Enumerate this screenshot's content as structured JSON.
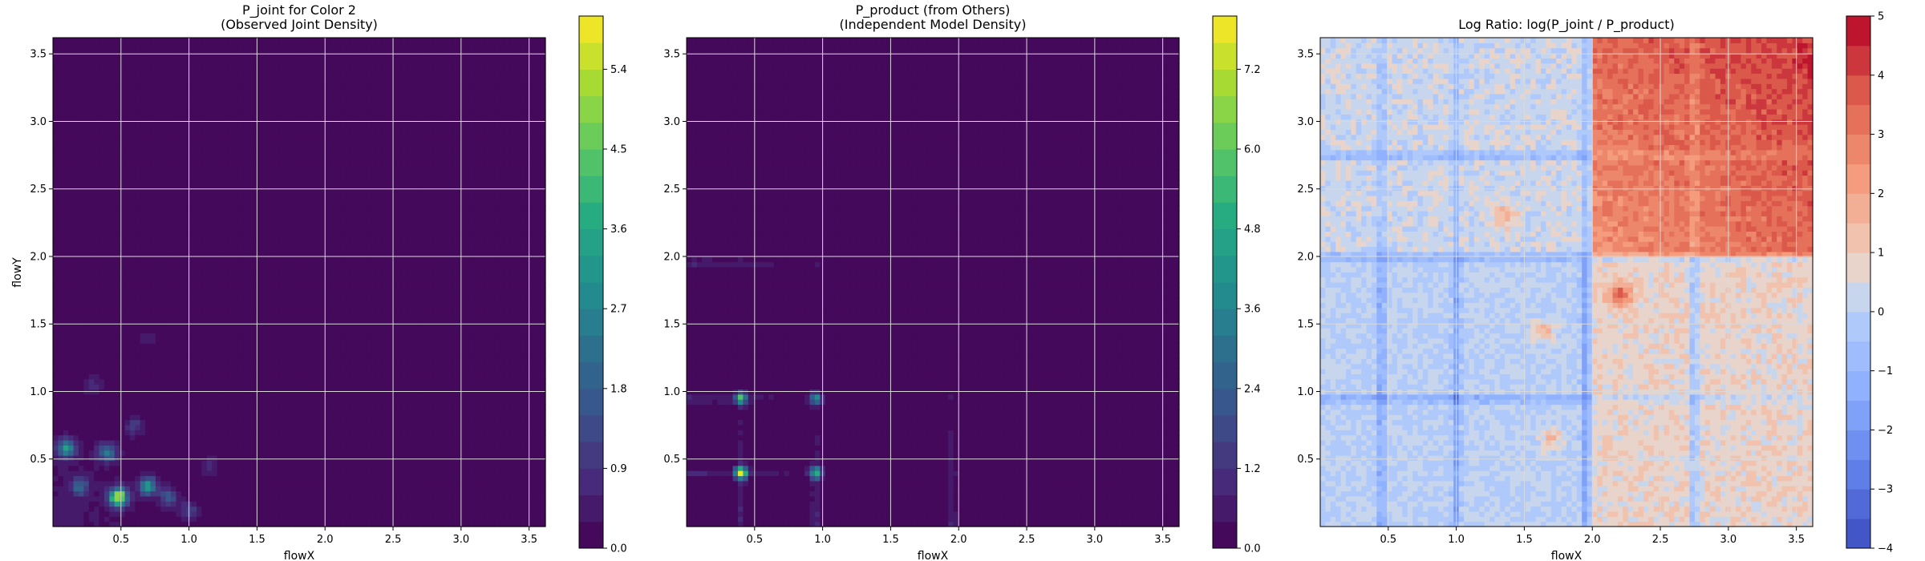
{
  "chart_data": [
    {
      "type": "heatmap",
      "title_lines": [
        "P_joint for Color 2",
        "(Observed Joint Density)"
      ],
      "xlabel": "flowX",
      "ylabel": "flowY",
      "xlim": [
        0,
        3.62
      ],
      "ylim": [
        0,
        3.62
      ],
      "xticks": [
        0.5,
        1.0,
        1.5,
        2.0,
        2.5,
        3.0,
        3.5
      ],
      "yticks": [
        0.5,
        1.0,
        1.5,
        2.0,
        2.5,
        3.0,
        3.5
      ],
      "xtick_labels": [
        "0.5",
        "1.0",
        "1.5",
        "2.0",
        "2.5",
        "3.0",
        "3.5"
      ],
      "ytick_labels": [
        "0.5",
        "1.0",
        "1.5",
        "2.0",
        "2.5",
        "3.0",
        "3.5"
      ],
      "grid": true,
      "colormap": "viridis",
      "colorbar": {
        "range": [
          0,
          6.0
        ],
        "ticks": [
          0.0,
          0.9,
          1.8,
          2.7,
          3.6,
          4.5,
          5.4
        ],
        "tick_labels": [
          "0.0",
          "0.9",
          "1.8",
          "2.7",
          "3.6",
          "4.5",
          "5.4"
        ],
        "levels": 20
      },
      "peaks": [
        {
          "x": 0.48,
          "y": 0.22,
          "value": 5.6
        },
        {
          "x": 0.1,
          "y": 0.58,
          "value": 3.0
        },
        {
          "x": 0.7,
          "y": 0.3,
          "value": 3.0
        },
        {
          "x": 0.4,
          "y": 0.55,
          "value": 2.4
        },
        {
          "x": 0.2,
          "y": 0.3,
          "value": 1.8
        },
        {
          "x": 0.85,
          "y": 0.22,
          "value": 1.6
        },
        {
          "x": 1.0,
          "y": 0.12,
          "value": 1.2
        },
        {
          "x": 0.6,
          "y": 0.75,
          "value": 1.0
        },
        {
          "x": 1.15,
          "y": 0.45,
          "value": 0.8
        },
        {
          "x": 0.3,
          "y": 1.05,
          "value": 0.7
        },
        {
          "x": 0.7,
          "y": 1.4,
          "value": 0.5
        }
      ]
    },
    {
      "type": "heatmap",
      "title_lines": [
        "P_product (from Others)",
        "(Independent Model Density)"
      ],
      "xlabel": "flowX",
      "ylabel": "",
      "xlim": [
        0,
        3.62
      ],
      "ylim": [
        0,
        3.62
      ],
      "xticks": [
        0.5,
        1.0,
        1.5,
        2.0,
        2.5,
        3.0,
        3.5
      ],
      "yticks": [
        0.5,
        1.0,
        1.5,
        2.0,
        2.5,
        3.0,
        3.5
      ],
      "xtick_labels": [
        "0.5",
        "1.0",
        "1.5",
        "2.0",
        "2.5",
        "3.0",
        "3.5"
      ],
      "ytick_labels": [
        "0.5",
        "1.0",
        "1.5",
        "2.0",
        "2.5",
        "3.0",
        "3.5"
      ],
      "grid": true,
      "colormap": "viridis",
      "colorbar": {
        "range": [
          0,
          8.0
        ],
        "ticks": [
          0.0,
          1.2,
          2.4,
          3.6,
          4.8,
          6.0,
          7.2
        ],
        "tick_labels": [
          "0.0",
          "1.2",
          "2.4",
          "3.6",
          "4.8",
          "6.0",
          "7.2"
        ],
        "levels": 20
      },
      "marginal_x_peaks": [
        0.4,
        0.95,
        1.95
      ],
      "marginal_y_peaks": [
        0.4,
        0.95,
        1.95
      ],
      "peaks": [
        {
          "x": 0.4,
          "y": 0.4,
          "value": 7.6
        },
        {
          "x": 0.95,
          "y": 0.4,
          "value": 4.8
        },
        {
          "x": 0.4,
          "y": 0.95,
          "value": 4.8
        },
        {
          "x": 0.95,
          "y": 0.95,
          "value": 3.6
        }
      ]
    },
    {
      "type": "heatmap",
      "title": "Log Ratio: log(P_joint / P_product)",
      "xlabel": "flowX",
      "ylabel": "",
      "xlim": [
        0,
        3.62
      ],
      "ylim": [
        0,
        3.62
      ],
      "xticks": [
        0.5,
        1.0,
        1.5,
        2.0,
        2.5,
        3.0,
        3.5
      ],
      "yticks": [
        0.5,
        1.0,
        1.5,
        2.0,
        2.5,
        3.0,
        3.5
      ],
      "xtick_labels": [
        "0.5",
        "1.0",
        "1.5",
        "2.0",
        "2.5",
        "3.0",
        "3.5"
      ],
      "ytick_labels": [
        "0.5",
        "1.0",
        "1.5",
        "2.0",
        "2.5",
        "3.0",
        "3.5"
      ],
      "grid": true,
      "colormap": "coolwarm",
      "colorbar": {
        "range": [
          -4,
          5
        ],
        "ticks": [
          -4,
          -3,
          -2,
          -1,
          0,
          1,
          2,
          3,
          4,
          5
        ],
        "tick_labels": [
          "−4",
          "−3",
          "−2",
          "−1",
          "0",
          "1",
          "2",
          "3",
          "4",
          "5"
        ],
        "levels": 18
      },
      "regions": [
        {
          "x_range": [
            2.0,
            3.62
          ],
          "y_range": [
            2.0,
            3.62
          ],
          "value": 2.5,
          "note_level_max": 4.5
        },
        {
          "x_range": [
            0,
            2.0
          ],
          "y_range": [
            0,
            2.0
          ],
          "value": 0.0
        },
        {
          "x_range": [
            2.0,
            3.62
          ],
          "y_range": [
            0,
            2.0
          ],
          "value": 0.8
        },
        {
          "x_range": [
            0,
            2.0
          ],
          "y_range": [
            2.0,
            3.62
          ],
          "value": 0.3
        }
      ],
      "hotspots": [
        {
          "x": 2.2,
          "y": 1.72,
          "value": 2.8
        },
        {
          "x": 1.65,
          "y": 1.45,
          "value": 1.6
        },
        {
          "x": 1.35,
          "y": 2.3,
          "value": 1.5
        },
        {
          "x": 1.7,
          "y": 0.65,
          "value": 1.4
        }
      ],
      "cold_lines_x": [
        0.45,
        1.0,
        1.95,
        2.75
      ],
      "cold_lines_y": [
        0.95,
        2.0,
        2.75
      ]
    }
  ]
}
